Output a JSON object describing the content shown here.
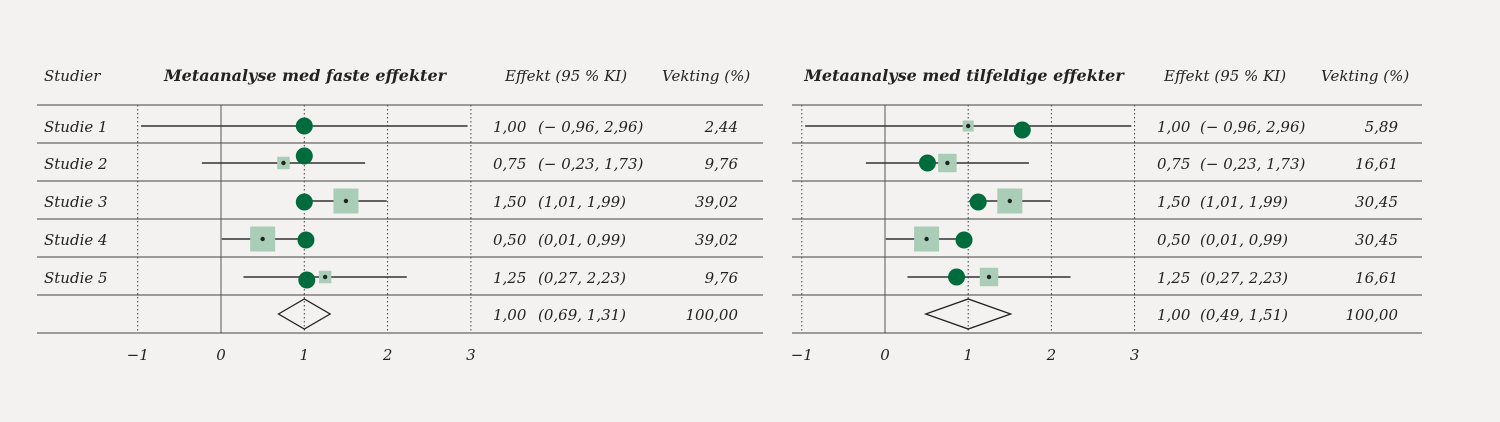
{
  "colors": {
    "circle": "#006b3c",
    "square": "#a9cdb6",
    "line": "#333333",
    "background": "#f3f2f0"
  },
  "row_header": "Studier",
  "chart_data": [
    {
      "type": "forest",
      "title": "Metaanalyse med faste effekter",
      "col_effect": "Effekt (95 % KI)",
      "col_weight": "Vekting (%)",
      "xlim": [
        -1,
        3
      ],
      "xticks": [
        "−1",
        "0",
        "1",
        "2",
        "3"
      ],
      "xtick_values": [
        -1,
        0,
        1,
        2,
        3
      ],
      "grid": "dotted vertical at -1, 1, 2, 3",
      "studies": [
        {
          "label": "Studie 1",
          "effect": 1.0,
          "lo": -0.96,
          "hi": 2.96,
          "weight": 2.44,
          "effect_text": "1,00",
          "ci_text": "(− 0,96, 2,96)",
          "weight_text": "2,44",
          "circle": 1.0
        },
        {
          "label": "Studie 2",
          "effect": 0.75,
          "lo": -0.23,
          "hi": 1.73,
          "weight": 9.76,
          "effect_text": "0,75",
          "ci_text": "(− 0,23, 1,73)",
          "weight_text": "9,76",
          "circle": 1.0
        },
        {
          "label": "Studie 3",
          "effect": 1.5,
          "lo": 1.01,
          "hi": 1.99,
          "weight": 39.02,
          "effect_text": "1,50",
          "ci_text": "(1,01, 1,99)",
          "weight_text": "39,02",
          "circle": 1.0
        },
        {
          "label": "Studie 4",
          "effect": 0.5,
          "lo": 0.01,
          "hi": 0.99,
          "weight": 39.02,
          "effect_text": "0,50",
          "ci_text": "(0,01, 0,99)",
          "weight_text": "39,02",
          "circle": 1.02
        },
        {
          "label": "Studie 5",
          "effect": 1.25,
          "lo": 0.27,
          "hi": 2.23,
          "weight": 9.76,
          "effect_text": "1,25",
          "ci_text": "(0,27, 2,23)",
          "weight_text": "9,76",
          "circle": 1.03
        }
      ],
      "pooled": {
        "effect": 1.0,
        "lo": 0.69,
        "hi": 1.31,
        "effect_text": "1,00",
        "ci_text": "(0,69, 1,31)",
        "weight_text": "100,00"
      }
    },
    {
      "type": "forest",
      "title": "Metaanalyse med tilfeldige effekter",
      "col_effect": "Effekt (95 % KI)",
      "col_weight": "Vekting (%)",
      "xlim": [
        -1,
        3
      ],
      "xticks": [
        "−1",
        "0",
        "1",
        "2",
        "3"
      ],
      "xtick_values": [
        -1,
        0,
        1,
        2,
        3
      ],
      "grid": "dotted vertical at -1, 1, 2, 3",
      "studies": [
        {
          "label": "Studie 1",
          "effect": 1.0,
          "lo": -0.96,
          "hi": 2.96,
          "weight": 5.89,
          "effect_text": "1,00",
          "ci_text": "(− 0,96, 2,96)",
          "weight_text": "5,89",
          "circle": 1.65
        },
        {
          "label": "Studie 2",
          "effect": 0.75,
          "lo": -0.23,
          "hi": 1.73,
          "weight": 16.61,
          "effect_text": "0,75",
          "ci_text": "(− 0,23, 1,73)",
          "weight_text": "16,61",
          "circle": 0.51
        },
        {
          "label": "Studie 3",
          "effect": 1.5,
          "lo": 1.01,
          "hi": 1.99,
          "weight": 30.45,
          "effect_text": "1,50",
          "ci_text": "(1,01, 1,99)",
          "weight_text": "30,45",
          "circle": 1.12
        },
        {
          "label": "Studie 4",
          "effect": 0.5,
          "lo": 0.01,
          "hi": 0.99,
          "weight": 30.45,
          "effect_text": "0,50",
          "ci_text": "(0,01, 0,99)",
          "weight_text": "30,45",
          "circle": 0.95
        },
        {
          "label": "Studie 5",
          "effect": 1.25,
          "lo": 0.27,
          "hi": 2.23,
          "weight": 16.61,
          "effect_text": "1,25",
          "ci_text": "(0,27, 2,23)",
          "weight_text": "16,61",
          "circle": 0.86
        }
      ],
      "pooled": {
        "effect": 1.0,
        "lo": 0.49,
        "hi": 1.51,
        "effect_text": "1,00",
        "ci_text": "(0,49, 1,51)",
        "weight_text": "100,00"
      }
    }
  ]
}
